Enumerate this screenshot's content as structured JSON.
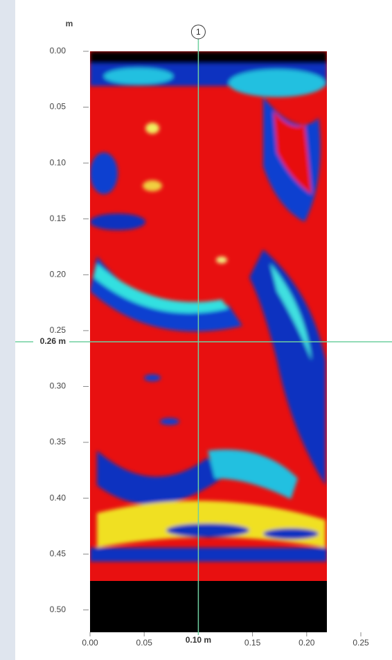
{
  "chart_data": {
    "type": "heatmap",
    "y_unit": "m",
    "ylim": [
      0,
      0.52
    ],
    "yticks": [
      {
        "value": 0,
        "label": "0.00"
      },
      {
        "value": 0.05,
        "label": "0.05"
      },
      {
        "value": 0.1,
        "label": "0.10"
      },
      {
        "value": 0.15,
        "label": "0.15"
      },
      {
        "value": 0.2,
        "label": "0.20"
      },
      {
        "value": 0.25,
        "label": "0.25"
      },
      {
        "value": 0.3,
        "label": "0.30"
      },
      {
        "value": 0.35,
        "label": "0.35"
      },
      {
        "value": 0.4,
        "label": "0.40"
      },
      {
        "value": 0.45,
        "label": "0.45"
      },
      {
        "value": 0.5,
        "label": "0.50"
      }
    ],
    "xlim": [
      0,
      0.25
    ],
    "xticks": [
      {
        "value": 0,
        "label": "0.00"
      },
      {
        "value": 0.05,
        "label": "0.05"
      },
      {
        "value": 0.15,
        "label": "0.15"
      },
      {
        "value": 0.2,
        "label": "0.20"
      },
      {
        "value": 0.25,
        "label": "0.25"
      }
    ],
    "cursor_x": {
      "value": 0.1,
      "label": "0.10 m"
    },
    "cursor_y": {
      "value": 0.26,
      "label": "0.26 m"
    },
    "marker": "1",
    "cursor_color": "#6fcf9f"
  }
}
